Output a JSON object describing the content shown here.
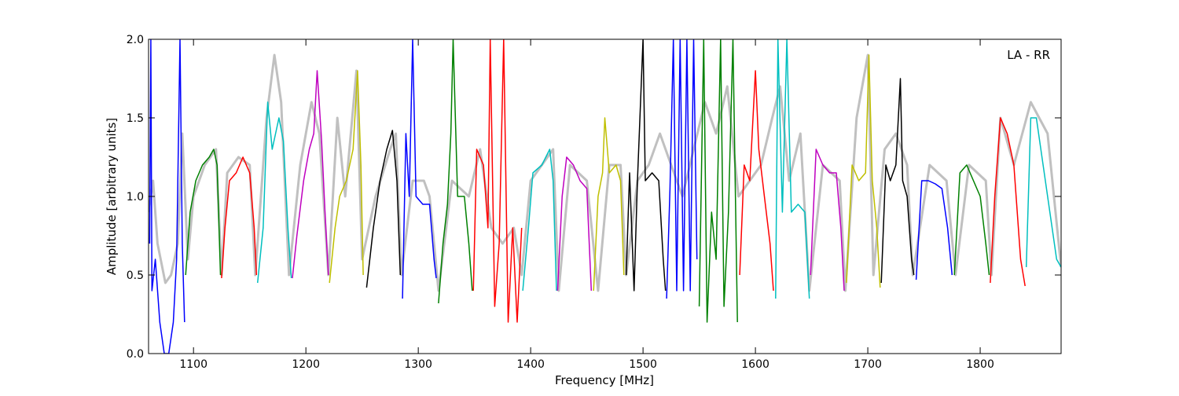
{
  "chart_data": {
    "type": "line",
    "title": "",
    "panel_label": "LA - RR",
    "xlabel": "Frequency [MHz]",
    "ylabel": "Amplitude [arbitrary units]",
    "xlim": [
      1060,
      1872
    ],
    "ylim": [
      0.0,
      2.0
    ],
    "grid": false,
    "x_ticks": [
      1100,
      1200,
      1300,
      1400,
      1500,
      1600,
      1700,
      1800
    ],
    "x_tick_labels": [
      "1100",
      "1200",
      "1300",
      "1400",
      "1500",
      "1600",
      "1700",
      "1800"
    ],
    "y_ticks": [
      0.0,
      0.5,
      1.0,
      1.5,
      2.0
    ],
    "y_tick_labels": [
      "0.0",
      "0.5",
      "1.0",
      "1.5",
      "2.0"
    ],
    "background_series": {
      "color": "#c0c0c0",
      "points": [
        [
          1060,
          0.9
        ],
        [
          1064,
          1.1
        ],
        [
          1068,
          0.7
        ],
        [
          1075,
          0.45
        ],
        [
          1080,
          0.5
        ],
        [
          1086,
          0.7
        ],
        [
          1090,
          1.4
        ],
        [
          1095,
          0.6
        ],
        [
          1100,
          1.0
        ],
        [
          1110,
          1.2
        ],
        [
          1120,
          1.3
        ],
        [
          1125,
          0.5
        ],
        [
          1130,
          1.15
        ],
        [
          1140,
          1.25
        ],
        [
          1150,
          1.2
        ],
        [
          1155,
          0.5
        ],
        [
          1165,
          1.5
        ],
        [
          1172,
          1.9
        ],
        [
          1178,
          1.6
        ],
        [
          1185,
          0.5
        ],
        [
          1195,
          1.2
        ],
        [
          1205,
          1.6
        ],
        [
          1212,
          1.4
        ],
        [
          1220,
          0.5
        ],
        [
          1228,
          1.5
        ],
        [
          1235,
          1.0
        ],
        [
          1245,
          1.8
        ],
        [
          1250,
          0.6
        ],
        [
          1262,
          1.0
        ],
        [
          1275,
          1.3
        ],
        [
          1280,
          1.4
        ],
        [
          1285,
          0.5
        ],
        [
          1295,
          1.1
        ],
        [
          1305,
          1.1
        ],
        [
          1310,
          1.0
        ],
        [
          1318,
          0.4
        ],
        [
          1330,
          1.1
        ],
        [
          1345,
          1.0
        ],
        [
          1355,
          1.3
        ],
        [
          1365,
          0.8
        ],
        [
          1375,
          0.7
        ],
        [
          1385,
          0.8
        ],
        [
          1392,
          0.5
        ],
        [
          1400,
          1.1
        ],
        [
          1410,
          1.2
        ],
        [
          1420,
          1.3
        ],
        [
          1425,
          0.4
        ],
        [
          1435,
          1.2
        ],
        [
          1450,
          1.1
        ],
        [
          1460,
          0.4
        ],
        [
          1470,
          1.2
        ],
        [
          1480,
          1.2
        ],
        [
          1485,
          0.5
        ],
        [
          1495,
          1.1
        ],
        [
          1505,
          1.2
        ],
        [
          1515,
          1.4
        ],
        [
          1525,
          1.2
        ],
        [
          1535,
          1.0
        ],
        [
          1545,
          1.3
        ],
        [
          1555,
          1.6
        ],
        [
          1565,
          1.4
        ],
        [
          1575,
          1.7
        ],
        [
          1585,
          1.0
        ],
        [
          1595,
          1.1
        ],
        [
          1605,
          1.2
        ],
        [
          1615,
          1.5
        ],
        [
          1622,
          1.7
        ],
        [
          1630,
          1.1
        ],
        [
          1640,
          1.4
        ],
        [
          1648,
          0.4
        ],
        [
          1660,
          1.2
        ],
        [
          1675,
          1.1
        ],
        [
          1680,
          0.4
        ],
        [
          1690,
          1.5
        ],
        [
          1700,
          1.9
        ],
        [
          1705,
          0.5
        ],
        [
          1715,
          1.3
        ],
        [
          1725,
          1.4
        ],
        [
          1735,
          1.2
        ],
        [
          1740,
          0.5
        ],
        [
          1755,
          1.2
        ],
        [
          1770,
          1.1
        ],
        [
          1778,
          0.5
        ],
        [
          1790,
          1.2
        ],
        [
          1805,
          1.1
        ],
        [
          1810,
          0.5
        ],
        [
          1818,
          1.5
        ],
        [
          1830,
          1.2
        ],
        [
          1845,
          1.6
        ],
        [
          1860,
          1.4
        ],
        [
          1872,
          0.55
        ]
      ]
    },
    "series": [
      {
        "color": "#0000ff",
        "points": [
          [
            1061,
            0.7
          ],
          [
            1062,
            2.0
          ],
          [
            1063,
            0.4
          ],
          [
            1066,
            0.6
          ],
          [
            1070,
            0.2
          ],
          [
            1074,
            0.0
          ],
          [
            1078,
            0.0
          ],
          [
            1082,
            0.2
          ],
          [
            1085,
            0.6
          ],
          [
            1088,
            2.0
          ],
          [
            1090,
            0.7
          ],
          [
            1092,
            0.2
          ]
        ]
      },
      {
        "color": "#008000",
        "points": [
          [
            1093,
            0.5
          ],
          [
            1097,
            0.9
          ],
          [
            1102,
            1.1
          ],
          [
            1108,
            1.2
          ],
          [
            1114,
            1.25
          ],
          [
            1118,
            1.3
          ],
          [
            1121,
            1.2
          ],
          [
            1124,
            0.5
          ]
        ]
      },
      {
        "color": "#ff0000",
        "points": [
          [
            1125,
            0.48
          ],
          [
            1128,
            0.8
          ],
          [
            1132,
            1.1
          ],
          [
            1138,
            1.15
          ],
          [
            1144,
            1.25
          ],
          [
            1150,
            1.15
          ],
          [
            1154,
            0.8
          ],
          [
            1156,
            0.5
          ]
        ]
      },
      {
        "color": "#00bfbf",
        "points": [
          [
            1157,
            0.45
          ],
          [
            1162,
            0.8
          ],
          [
            1166,
            1.6
          ],
          [
            1170,
            1.3
          ],
          [
            1176,
            1.5
          ],
          [
            1180,
            1.35
          ],
          [
            1184,
            0.8
          ],
          [
            1187,
            0.48
          ]
        ]
      },
      {
        "color": "#bf00bf",
        "points": [
          [
            1188,
            0.48
          ],
          [
            1192,
            0.75
          ],
          [
            1198,
            1.1
          ],
          [
            1203,
            1.3
          ],
          [
            1207,
            1.4
          ],
          [
            1210,
            1.8
          ],
          [
            1214,
            1.35
          ],
          [
            1217,
            0.9
          ],
          [
            1220,
            0.5
          ]
        ]
      },
      {
        "color": "#bfbf00",
        "points": [
          [
            1221,
            0.45
          ],
          [
            1226,
            0.8
          ],
          [
            1230,
            1.0
          ],
          [
            1236,
            1.1
          ],
          [
            1242,
            1.3
          ],
          [
            1246,
            1.8
          ],
          [
            1249,
            1.2
          ],
          [
            1251,
            0.5
          ]
        ]
      },
      {
        "color": "#000000",
        "points": [
          [
            1254,
            0.42
          ],
          [
            1260,
            0.8
          ],
          [
            1266,
            1.1
          ],
          [
            1272,
            1.3
          ],
          [
            1277,
            1.42
          ],
          [
            1281,
            1.1
          ],
          [
            1284,
            0.5
          ]
        ]
      },
      {
        "color": "#0000ff",
        "points": [
          [
            1286,
            0.35
          ],
          [
            1289,
            1.4
          ],
          [
            1292,
            1.0
          ],
          [
            1295,
            2.0
          ],
          [
            1298,
            1.0
          ],
          [
            1304,
            0.95
          ],
          [
            1310,
            0.95
          ],
          [
            1314,
            0.6
          ],
          [
            1316,
            0.48
          ]
        ]
      },
      {
        "color": "#008000",
        "points": [
          [
            1318,
            0.32
          ],
          [
            1322,
            0.7
          ],
          [
            1326,
            0.95
          ],
          [
            1329,
            1.4
          ],
          [
            1331,
            2.0
          ],
          [
            1335,
            1.0
          ],
          [
            1341,
            1.0
          ],
          [
            1345,
            0.7
          ],
          [
            1348,
            0.4
          ]
        ]
      },
      {
        "color": "#ff0000",
        "points": [
          [
            1349,
            0.4
          ],
          [
            1352,
            1.3
          ],
          [
            1358,
            1.2
          ],
          [
            1362,
            0.8
          ],
          [
            1364,
            2.0
          ],
          [
            1368,
            0.3
          ],
          [
            1372,
            0.7
          ],
          [
            1376,
            2.0
          ],
          [
            1380,
            0.2
          ],
          [
            1384,
            0.8
          ],
          [
            1388,
            0.2
          ],
          [
            1392,
            0.8
          ]
        ]
      },
      {
        "color": "#00bfbf",
        "points": [
          [
            1393,
            0.4
          ],
          [
            1398,
            0.8
          ],
          [
            1402,
            1.15
          ],
          [
            1410,
            1.2
          ],
          [
            1417,
            1.3
          ],
          [
            1420,
            1.1
          ],
          [
            1423,
            0.4
          ]
        ]
      },
      {
        "color": "#bf00bf",
        "points": [
          [
            1424,
            0.4
          ],
          [
            1428,
            1.0
          ],
          [
            1432,
            1.25
          ],
          [
            1438,
            1.2
          ],
          [
            1444,
            1.1
          ],
          [
            1450,
            1.05
          ],
          [
            1454,
            0.4
          ]
        ]
      },
      {
        "color": "#bfbf00",
        "points": [
          [
            1456,
            0.4
          ],
          [
            1460,
            1.0
          ],
          [
            1464,
            1.15
          ],
          [
            1466,
            1.5
          ],
          [
            1470,
            1.15
          ],
          [
            1476,
            1.2
          ],
          [
            1480,
            1.1
          ],
          [
            1483,
            0.5
          ]
        ]
      },
      {
        "color": "#000000",
        "points": [
          [
            1485,
            0.5
          ],
          [
            1488,
            1.15
          ],
          [
            1492,
            0.4
          ],
          [
            1495,
            1.1
          ],
          [
            1500,
            2.0
          ],
          [
            1502,
            1.1
          ],
          [
            1508,
            1.15
          ],
          [
            1514,
            1.1
          ],
          [
            1518,
            0.6
          ],
          [
            1520,
            0.4
          ]
        ]
      },
      {
        "color": "#0000ff",
        "points": [
          [
            1521,
            0.35
          ],
          [
            1524,
            1.05
          ],
          [
            1527,
            2.0
          ],
          [
            1530,
            0.4
          ],
          [
            1533,
            2.0
          ],
          [
            1536,
            0.4
          ],
          [
            1539,
            2.0
          ],
          [
            1542,
            0.4
          ],
          [
            1545,
            2.0
          ],
          [
            1548,
            0.6
          ]
        ]
      },
      {
        "color": "#008000",
        "points": [
          [
            1550,
            0.3
          ],
          [
            1554,
            2.0
          ],
          [
            1557,
            0.2
          ],
          [
            1561,
            0.9
          ],
          [
            1565,
            0.6
          ],
          [
            1569,
            2.0
          ],
          [
            1572,
            0.3
          ],
          [
            1576,
            0.9
          ],
          [
            1580,
            2.0
          ],
          [
            1584,
            0.2
          ]
        ]
      },
      {
        "color": "#ff0000",
        "points": [
          [
            1586,
            0.5
          ],
          [
            1590,
            1.2
          ],
          [
            1595,
            1.1
          ],
          [
            1600,
            1.8
          ],
          [
            1603,
            1.3
          ],
          [
            1608,
            1.0
          ],
          [
            1613,
            0.7
          ],
          [
            1616,
            0.4
          ]
        ]
      },
      {
        "color": "#00bfbf",
        "points": [
          [
            1618,
            0.35
          ],
          [
            1620,
            2.0
          ],
          [
            1624,
            0.9
          ],
          [
            1628,
            2.0
          ],
          [
            1632,
            0.9
          ],
          [
            1638,
            0.95
          ],
          [
            1644,
            0.9
          ],
          [
            1648,
            0.35
          ]
        ]
      },
      {
        "color": "#bf00bf",
        "points": [
          [
            1649,
            0.5
          ],
          [
            1654,
            1.3
          ],
          [
            1660,
            1.2
          ],
          [
            1666,
            1.15
          ],
          [
            1672,
            1.15
          ],
          [
            1676,
            0.8
          ],
          [
            1679,
            0.4
          ]
        ]
      },
      {
        "color": "#bfbf00",
        "points": [
          [
            1681,
            0.45
          ],
          [
            1686,
            1.2
          ],
          [
            1692,
            1.1
          ],
          [
            1698,
            1.15
          ],
          [
            1701,
            1.9
          ],
          [
            1704,
            1.1
          ],
          [
            1708,
            0.8
          ],
          [
            1711,
            0.42
          ]
        ]
      },
      {
        "color": "#000000",
        "points": [
          [
            1712,
            0.45
          ],
          [
            1716,
            1.2
          ],
          [
            1720,
            1.1
          ],
          [
            1725,
            1.2
          ],
          [
            1729,
            1.75
          ],
          [
            1731,
            1.1
          ],
          [
            1735,
            1.0
          ],
          [
            1739,
            0.6
          ],
          [
            1741,
            0.5
          ]
        ]
      },
      {
        "color": "#0000ff",
        "points": [
          [
            1743,
            0.47
          ],
          [
            1748,
            1.1
          ],
          [
            1754,
            1.1
          ],
          [
            1760,
            1.08
          ],
          [
            1766,
            1.05
          ],
          [
            1771,
            0.8
          ],
          [
            1775,
            0.5
          ]
        ]
      },
      {
        "color": "#008000",
        "points": [
          [
            1777,
            0.5
          ],
          [
            1782,
            1.15
          ],
          [
            1788,
            1.2
          ],
          [
            1794,
            1.1
          ],
          [
            1800,
            1.0
          ],
          [
            1805,
            0.7
          ],
          [
            1808,
            0.5
          ]
        ]
      },
      {
        "color": "#ff0000",
        "points": [
          [
            1809,
            0.45
          ],
          [
            1813,
            1.0
          ],
          [
            1818,
            1.5
          ],
          [
            1824,
            1.4
          ],
          [
            1830,
            1.2
          ],
          [
            1836,
            0.6
          ],
          [
            1840,
            0.43
          ]
        ]
      },
      {
        "color": "#00bfbf",
        "points": [
          [
            1841,
            0.55
          ],
          [
            1845,
            1.5
          ],
          [
            1850,
            1.5
          ],
          [
            1856,
            1.2
          ],
          [
            1862,
            0.9
          ],
          [
            1868,
            0.6
          ],
          [
            1872,
            0.55
          ]
        ]
      }
    ]
  }
}
